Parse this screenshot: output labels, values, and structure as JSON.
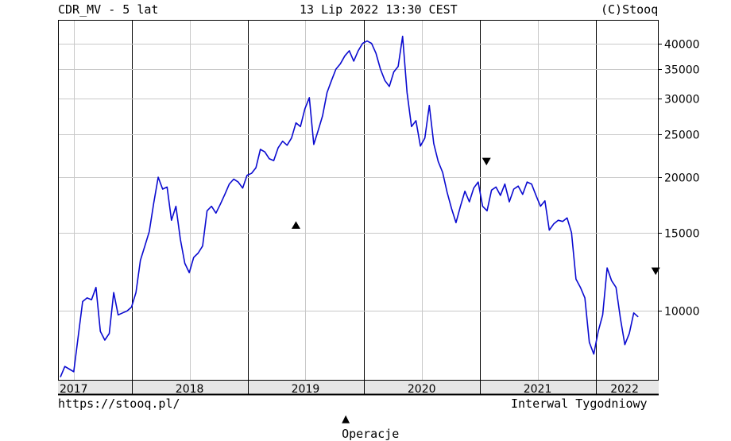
{
  "header": {
    "left": "CDR_MV - 5 lat",
    "center": "13 Lip 2022 13:30 CEST",
    "right": "(C)Stooq"
  },
  "footer": {
    "left": "https://stooq.pl/",
    "center_marker": "▲",
    "center_label": "Operacje",
    "right": "Interwal Tygodniowy"
  },
  "colors": {
    "series": "#0a0ad0",
    "grid": "#c8c8c8",
    "axis": "#000000",
    "year_band": "#e6e6e6"
  },
  "chart_data": {
    "type": "line",
    "title": "CDR_MV - 5 lat",
    "y_scale": "log",
    "ylim": [
      7000,
      45000
    ],
    "y_ticks": [
      10000,
      15000,
      20000,
      25000,
      30000,
      35000,
      40000
    ],
    "y_tick_labels": [
      "10000",
      "15000",
      "20000",
      "25000",
      "30000",
      "35000",
      "40000"
    ],
    "x_range": [
      "2017-05-15",
      "2022-07-15"
    ],
    "x_year_labels": [
      "2017",
      "2018",
      "2019",
      "2020",
      "2021",
      "2022"
    ],
    "x_year_boundaries": [
      "2018-01-01",
      "2019-01-01",
      "2020-01-01",
      "2021-01-01",
      "2022-01-01"
    ],
    "x_label_positions": [
      "2017-07-01",
      "2018-07-01",
      "2019-07-01",
      "2020-07-01",
      "2021-07-01",
      "2022-04-01"
    ],
    "x_minor_grid": [
      "2017-07-01",
      "2018-07-01",
      "2019-07-01",
      "2020-07-01",
      "2021-07-01"
    ],
    "series": [
      {
        "values": [
          [
            "2017-05-20",
            7100
          ],
          [
            "2017-06-03",
            7500
          ],
          [
            "2017-06-17",
            7400
          ],
          [
            "2017-07-01",
            7300
          ],
          [
            "2017-07-29",
            10500
          ],
          [
            "2017-08-12",
            10700
          ],
          [
            "2017-08-26",
            10600
          ],
          [
            "2017-09-09",
            11300
          ],
          [
            "2017-09-23",
            9000
          ],
          [
            "2017-10-07",
            8600
          ],
          [
            "2017-10-21",
            8900
          ],
          [
            "2017-11-04",
            11000
          ],
          [
            "2017-11-18",
            9800
          ],
          [
            "2017-12-02",
            9900
          ],
          [
            "2017-12-16",
            10000
          ],
          [
            "2017-12-30",
            10200
          ],
          [
            "2018-01-13",
            11000
          ],
          [
            "2018-01-27",
            13000
          ],
          [
            "2018-02-10",
            14000
          ],
          [
            "2018-02-24",
            15100
          ],
          [
            "2018-03-10",
            17500
          ],
          [
            "2018-03-24",
            20000
          ],
          [
            "2018-04-07",
            18800
          ],
          [
            "2018-04-21",
            19000
          ],
          [
            "2018-05-05",
            16000
          ],
          [
            "2018-05-19",
            17200
          ],
          [
            "2018-06-02",
            14500
          ],
          [
            "2018-06-16",
            12800
          ],
          [
            "2018-06-30",
            12200
          ],
          [
            "2018-07-14",
            13200
          ],
          [
            "2018-07-28",
            13500
          ],
          [
            "2018-08-11",
            14000
          ],
          [
            "2018-08-25",
            16800
          ],
          [
            "2018-09-08",
            17200
          ],
          [
            "2018-09-22",
            16600
          ],
          [
            "2018-10-06",
            17400
          ],
          [
            "2018-10-20",
            18300
          ],
          [
            "2018-11-03",
            19300
          ],
          [
            "2018-11-17",
            19800
          ],
          [
            "2018-12-01",
            19500
          ],
          [
            "2018-12-15",
            18900
          ],
          [
            "2018-12-29",
            20200
          ],
          [
            "2019-01-12",
            20400
          ],
          [
            "2019-01-26",
            21000
          ],
          [
            "2019-02-09",
            23100
          ],
          [
            "2019-02-23",
            22800
          ],
          [
            "2019-03-09",
            22000
          ],
          [
            "2019-03-23",
            21800
          ],
          [
            "2019-04-06",
            23300
          ],
          [
            "2019-04-20",
            24100
          ],
          [
            "2019-05-04",
            23600
          ],
          [
            "2019-05-18",
            24500
          ],
          [
            "2019-06-01",
            26500
          ],
          [
            "2019-06-15",
            26000
          ],
          [
            "2019-06-29",
            28500
          ],
          [
            "2019-07-13",
            30200
          ],
          [
            "2019-07-27",
            23700
          ],
          [
            "2019-08-10",
            25500
          ],
          [
            "2019-08-24",
            27500
          ],
          [
            "2019-09-07",
            31000
          ],
          [
            "2019-09-21",
            33000
          ],
          [
            "2019-10-05",
            35000
          ],
          [
            "2019-10-19",
            36000
          ],
          [
            "2019-11-02",
            37500
          ],
          [
            "2019-11-16",
            38500
          ],
          [
            "2019-11-30",
            36500
          ],
          [
            "2019-12-14",
            38500
          ],
          [
            "2019-12-28",
            40000
          ],
          [
            "2020-01-11",
            40500
          ],
          [
            "2020-01-25",
            40000
          ],
          [
            "2020-02-08",
            38000
          ],
          [
            "2020-02-22",
            35000
          ],
          [
            "2020-03-07",
            33000
          ],
          [
            "2020-03-21",
            32000
          ],
          [
            "2020-04-04",
            34500
          ],
          [
            "2020-04-18",
            35500
          ],
          [
            "2020-05-02",
            41500
          ],
          [
            "2020-05-16",
            31000
          ],
          [
            "2020-05-30",
            26000
          ],
          [
            "2020-06-13",
            26800
          ],
          [
            "2020-06-27",
            23500
          ],
          [
            "2020-07-11",
            24500
          ],
          [
            "2020-07-25",
            29000
          ],
          [
            "2020-08-08",
            23800
          ],
          [
            "2020-08-22",
            21700
          ],
          [
            "2020-09-05",
            20500
          ],
          [
            "2020-09-19",
            18500
          ],
          [
            "2020-10-03",
            17000
          ],
          [
            "2020-10-17",
            15800
          ],
          [
            "2020-10-31",
            17200
          ],
          [
            "2020-11-14",
            18600
          ],
          [
            "2020-11-28",
            17600
          ],
          [
            "2020-12-12",
            18900
          ],
          [
            "2020-12-26",
            19500
          ],
          [
            "2021-01-09",
            17200
          ],
          [
            "2021-01-23",
            16800
          ],
          [
            "2021-02-06",
            18700
          ],
          [
            "2021-02-20",
            19000
          ],
          [
            "2021-03-06",
            18200
          ],
          [
            "2021-03-20",
            19300
          ],
          [
            "2021-04-03",
            17600
          ],
          [
            "2021-04-17",
            18800
          ],
          [
            "2021-05-01",
            19100
          ],
          [
            "2021-05-15",
            18300
          ],
          [
            "2021-05-29",
            19500
          ],
          [
            "2021-06-12",
            19300
          ],
          [
            "2021-06-26",
            18200
          ],
          [
            "2021-07-10",
            17200
          ],
          [
            "2021-07-24",
            17700
          ],
          [
            "2021-08-07",
            15200
          ],
          [
            "2021-08-21",
            15700
          ],
          [
            "2021-09-04",
            16000
          ],
          [
            "2021-09-18",
            15900
          ],
          [
            "2021-10-02",
            16200
          ],
          [
            "2021-10-16",
            15000
          ],
          [
            "2021-10-30",
            11800
          ],
          [
            "2021-11-13",
            11300
          ],
          [
            "2021-11-27",
            10700
          ],
          [
            "2021-12-11",
            8500
          ],
          [
            "2021-12-25",
            8000
          ],
          [
            "2022-01-08",
            9000
          ],
          [
            "2022-01-22",
            9800
          ],
          [
            "2022-02-05",
            12500
          ],
          [
            "2022-02-19",
            11700
          ],
          [
            "2022-03-05",
            11300
          ],
          [
            "2022-03-19",
            9600
          ],
          [
            "2022-04-02",
            8400
          ],
          [
            "2022-04-16",
            8900
          ],
          [
            "2022-04-30",
            9900
          ],
          [
            "2022-05-14",
            9700
          ]
        ]
      }
    ],
    "operations": [
      {
        "type": "buy",
        "symbol": "▲",
        "date": "2019-06-01",
        "value": 15600
      },
      {
        "type": "sell",
        "symbol": "▼",
        "date": "2021-01-21",
        "value": 21700
      },
      {
        "type": "sell",
        "symbol": "▼",
        "date": "2022-07-08",
        "value": 12300
      }
    ]
  }
}
